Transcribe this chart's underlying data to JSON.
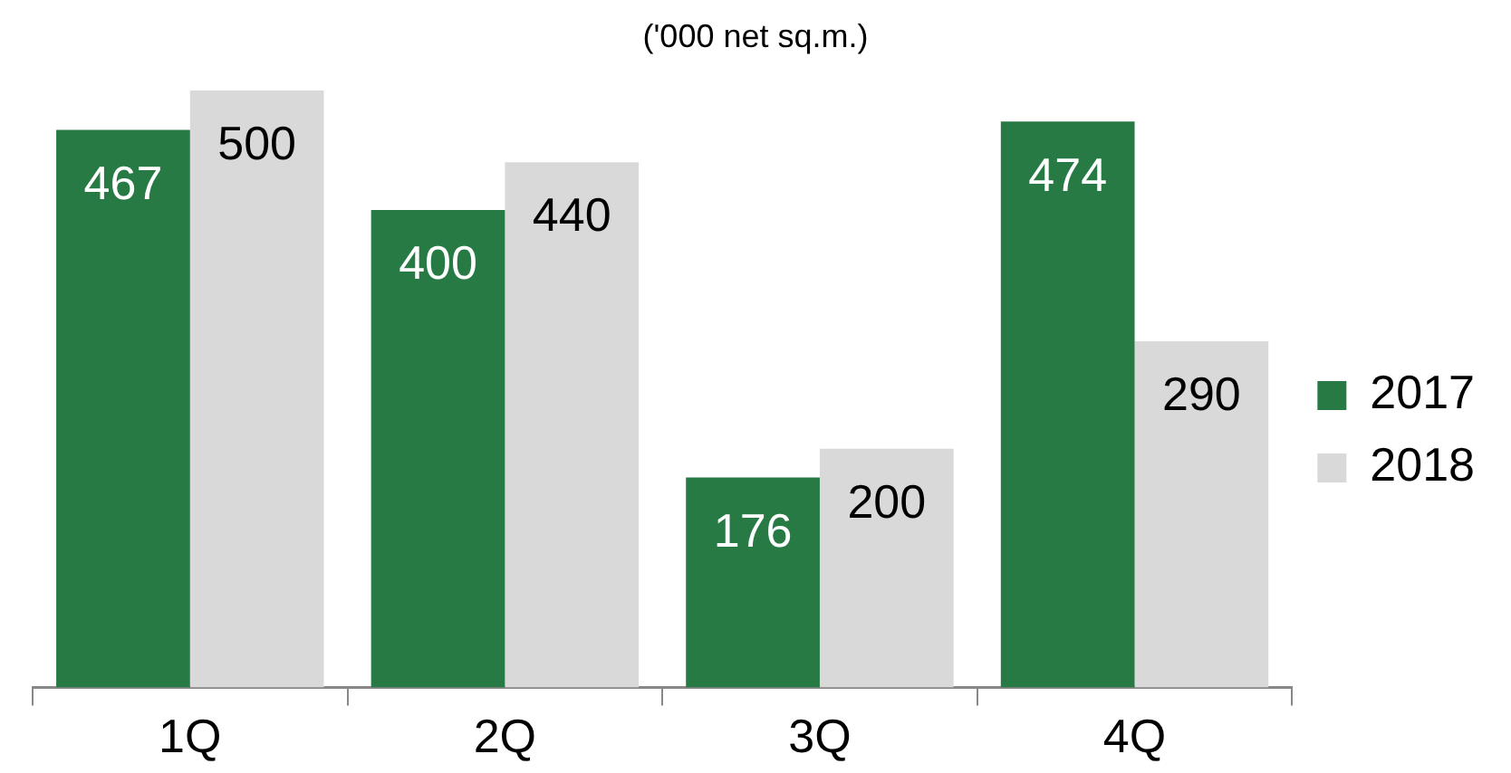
{
  "chart_data": {
    "type": "bar",
    "subtitle": "('000 net sq.m.)",
    "categories": [
      "1Q",
      "2Q",
      "3Q",
      "4Q"
    ],
    "series": [
      {
        "name": "2017",
        "color": "#277a43",
        "values": [
          467,
          400,
          176,
          474
        ]
      },
      {
        "name": "2018",
        "color": "#d9d9d9",
        "values": [
          500,
          440,
          200,
          290
        ]
      }
    ],
    "data_labels": true,
    "legend": "right",
    "grid": false,
    "tick_labels": "x"
  }
}
